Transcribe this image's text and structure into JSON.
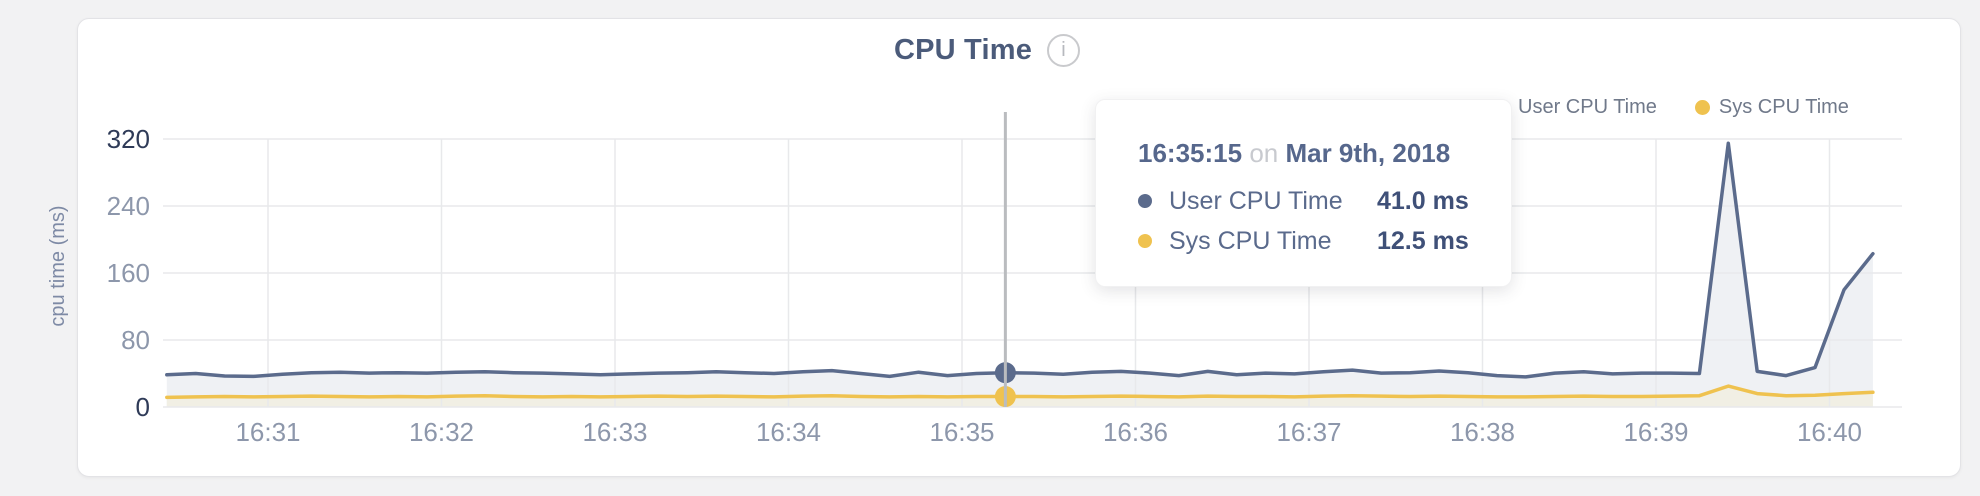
{
  "header": {
    "info_icon_glyph": "i"
  },
  "tooltip": {
    "time": "16:35:15",
    "on_word": "on",
    "date": "Mar 9th, 2018",
    "rows": [
      {
        "label": "User CPU Time",
        "value": "41.0 ms"
      },
      {
        "label": "Sys CPU Time",
        "value": "12.5 ms"
      }
    ]
  },
  "colors": {
    "user_series": "#5b6b8c",
    "user_fill": "#eff1f4",
    "sys_series": "#efc24f",
    "sys_fill": "#f1efe4",
    "gridline": "#e8e9eb",
    "crosshair": "#babcbf",
    "tick_label": "#8d97ab",
    "tick_label_emphasis": "#2f3b58",
    "axis_title": "#7e8aa5"
  },
  "chart_data": {
    "type": "area",
    "title": "CPU Time",
    "xlabel": "",
    "ylabel": "cpu time (ms)",
    "ylim": [
      0,
      320
    ],
    "y_ticks": [
      0,
      80,
      160,
      240,
      320
    ],
    "x_ticks": [
      "16:31",
      "16:32",
      "16:33",
      "16:34",
      "16:35",
      "16:36",
      "16:37",
      "16:38",
      "16:39",
      "16:40"
    ],
    "grid": true,
    "legend_position": "top-right",
    "start_time": "16:30:25",
    "interval_seconds": 10,
    "hover_index": 29,
    "hover_time": "16:35:15",
    "series": [
      {
        "name": "User CPU Time",
        "unit": "ms",
        "values": [
          38.5,
          40,
          37,
          36.5,
          39,
          41,
          41.5,
          40.5,
          41,
          40.5,
          41.5,
          42,
          41,
          40.5,
          39.5,
          38.5,
          39.5,
          40.5,
          41,
          42,
          41,
          40,
          42,
          43.5,
          40,
          36.5,
          41.5,
          37.5,
          40,
          41,
          40.5,
          39,
          41.5,
          42.5,
          40.5,
          37.5,
          42.5,
          38.5,
          40.5,
          39.5,
          42,
          44,
          40.5,
          41,
          43,
          41,
          37.5,
          36,
          40.5,
          42,
          39.5,
          40.5,
          40.5,
          40,
          315,
          42.5,
          37.5,
          47,
          140,
          183
        ]
      },
      {
        "name": "Sys CPU Time",
        "unit": "ms",
        "values": [
          11.5,
          12,
          12.5,
          12,
          12.5,
          13,
          12.5,
          12,
          12.5,
          12,
          13,
          13.5,
          12.5,
          12,
          12.5,
          12,
          12.5,
          13,
          12.5,
          13,
          12.5,
          12,
          13,
          13.5,
          12.5,
          12,
          12.5,
          12,
          12.5,
          12.5,
          12.5,
          12,
          12.5,
          13,
          12.5,
          12,
          13,
          12.5,
          12.5,
          12,
          13,
          13.5,
          13,
          12.5,
          13,
          12.5,
          12,
          12,
          12.5,
          13,
          12.5,
          12.5,
          13,
          13.5,
          25,
          16,
          13.5,
          14,
          16,
          17.5
        ]
      }
    ]
  }
}
